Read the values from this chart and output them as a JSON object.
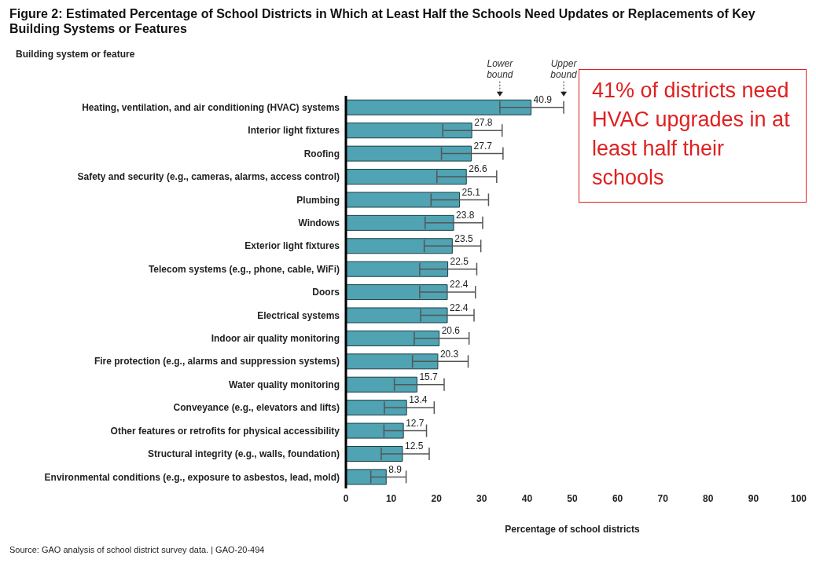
{
  "chart_data": {
    "type": "bar",
    "orientation": "horizontal",
    "title": "Figure 2: Estimated Percentage of School Districts in Which at Least Half the Schools Need Updates or Replacements of Key Building Systems or Features",
    "ylabel": "Building system or feature",
    "xlabel": "Percentage of school districts",
    "categories": [
      "Heating, ventilation, and air conditioning (HVAC) systems",
      "Interior light fixtures",
      "Roofing",
      "Safety and security (e.g., cameras, alarms, access control)",
      "Plumbing",
      "Windows",
      "Exterior light fixtures",
      "Telecom systems (e.g., phone, cable, WiFi)",
      "Doors",
      "Electrical systems",
      "Indoor air quality monitoring",
      "Fire protection (e.g., alarms and suppression systems)",
      "Water quality monitoring",
      "Conveyance (e.g., elevators and lifts)",
      "Other features or retrofits for physical accessibility",
      "Structural integrity (e.g., walls, foundation)",
      "Environmental conditions (e.g., exposure to asbestos, lead, mold)"
    ],
    "values": [
      40.9,
      27.8,
      27.7,
      26.6,
      25.1,
      23.8,
      23.5,
      22.5,
      22.4,
      22.4,
      20.6,
      20.3,
      15.7,
      13.4,
      12.7,
      12.5,
      8.9
    ],
    "errors": [
      [
        34.0,
        48.1
      ],
      [
        21.4,
        34.5
      ],
      [
        21.1,
        34.7
      ],
      [
        20.1,
        33.3
      ],
      [
        18.8,
        31.5
      ],
      [
        17.5,
        30.2
      ],
      [
        17.3,
        29.8
      ],
      [
        16.3,
        28.9
      ],
      [
        16.3,
        28.6
      ],
      [
        16.5,
        28.3
      ],
      [
        15.1,
        27.2
      ],
      [
        14.7,
        27.0
      ],
      [
        10.7,
        21.7
      ],
      [
        8.5,
        19.5
      ],
      [
        8.4,
        17.8
      ],
      [
        7.8,
        18.4
      ],
      [
        5.5,
        13.3
      ]
    ],
    "color": "#4fa3b3",
    "data_labels": true,
    "grid": false,
    "xlim": [
      0,
      100
    ],
    "xticks": [
      0,
      10,
      20,
      30,
      40,
      50,
      60,
      70,
      80,
      90,
      100
    ],
    "annotations": [
      {
        "text": "Lower bound",
        "x": 34.0,
        "y": "Heating, ventilation, and air conditioning (HVAC) systems"
      },
      {
        "text": "Upper bound",
        "x": 48.1,
        "y": "Heating, ventilation, and air conditioning (HVAC) systems"
      },
      "41% of districts need HVAC upgrades in at least half their schools",
      "Source: GAO analysis of school district survey data.  |  GAO-20-494"
    ]
  }
}
